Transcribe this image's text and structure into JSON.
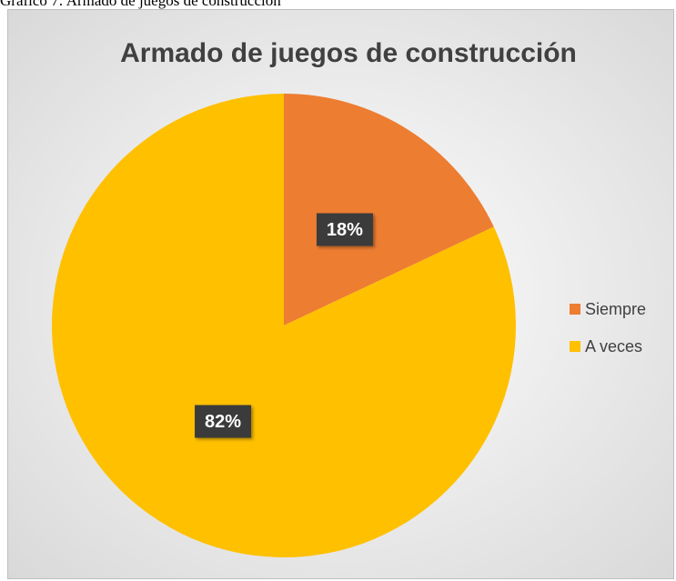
{
  "caption": "Gráfico 7: Armado de juegos de construcción",
  "chart_data": {
    "type": "pie",
    "title": "Armado de juegos de construcción",
    "categories": [
      "Siempre",
      "A veces"
    ],
    "values": [
      18,
      82
    ],
    "value_labels": [
      "18%",
      "82%"
    ],
    "colors": [
      "#ed7d31",
      "#ffc000"
    ],
    "legend": "right"
  }
}
